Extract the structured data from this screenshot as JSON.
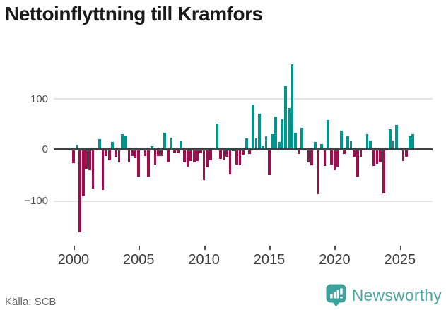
{
  "title": "Nettoinflyttning till Kramfors",
  "source": "Källa: SCB",
  "brand": {
    "name": "Newsworthy",
    "icon": "newsworthy-pin-barchart-icon"
  },
  "colors": {
    "positive_bar": "#00968F",
    "negative_bar": "#A00D4B",
    "zero_line": "#3E4245",
    "gridline": "#E4E4E4",
    "title_text": "#1A1A1A",
    "axis_text": "#4D4D4D",
    "source_text": "#666666",
    "brand_teal": "#4BA5A1",
    "background": "#FFFFFF"
  },
  "chart_data": {
    "type": "bar",
    "title": "Nettoinflyttning till Kramfors",
    "description": "Quarterly net migration to Kramfors, single series, positive values teal, negative values dark red",
    "period_start": "2000 Q1",
    "frequency": "quarterly",
    "grid": "horizontal lines at 100 and -100, dark zero baseline",
    "legend": "none",
    "ylim": [
      -175,
      180
    ],
    "y_ticks": [
      100,
      0,
      -100
    ],
    "y_tick_labels": [
      "100",
      "0",
      "−100"
    ],
    "x_tick_labels": [
      "2000",
      "2005",
      "2010",
      "2015",
      "2020",
      "2025"
    ],
    "x_tick_indices": [
      0,
      20,
      40,
      60,
      80,
      100
    ],
    "values": [
      -27,
      9,
      -162,
      -92,
      -38,
      -40,
      -76,
      -2,
      20,
      -79,
      -13,
      -22,
      15,
      -15,
      -26,
      29,
      27,
      -26,
      -13,
      -17,
      -53,
      -2,
      -13,
      -53,
      6,
      -29,
      -13,
      -13,
      32,
      -26,
      23,
      -6,
      -8,
      16,
      -25,
      -34,
      -23,
      -25,
      -23,
      -8,
      -60,
      -35,
      -21,
      -2,
      50,
      -19,
      -21,
      -14,
      -49,
      -3,
      -29,
      -31,
      -11,
      21,
      -9,
      87,
      21,
      70,
      6,
      25,
      -50,
      29,
      64,
      15,
      58,
      124,
      81,
      166,
      33,
      -9,
      42,
      2,
      -25,
      -31,
      14,
      -88,
      11,
      -32,
      57,
      -30,
      -40,
      -34,
      37,
      -9,
      26,
      16,
      -14,
      -53,
      -14,
      -2,
      29,
      17,
      -32,
      -28,
      -25,
      -86,
      -2,
      40,
      17,
      47,
      -2,
      -23,
      -15,
      25,
      29
    ]
  }
}
